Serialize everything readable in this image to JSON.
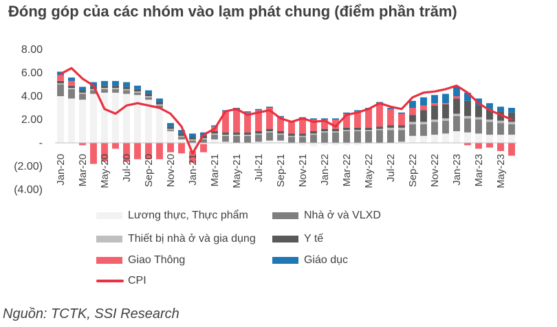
{
  "chart_data": {
    "type": "bar",
    "title": "Đóng góp của các nhóm vào lạm phát chung (điểm phần trăm)",
    "source": "Nguồn: TCTK, SSI Research",
    "ylim": [
      -4,
      8
    ],
    "yticks": [
      8,
      6,
      4,
      2,
      0,
      -2,
      -4
    ],
    "ytick_labels": [
      "8.00",
      "6.00",
      "4.00",
      "2.00",
      "-",
      "(2.00)",
      "(4.00)"
    ],
    "xtick_labels": [
      "Jan-20",
      "Mar-20",
      "May-20",
      "Jul-20",
      "Sep-20",
      "Nov-20",
      "Jan-21",
      "Mar-21",
      "May-21",
      "Jul-21",
      "Sep-21",
      "Nov-21",
      "Jan-22",
      "Mar-22",
      "May-22",
      "Jul-22",
      "Sep-22",
      "Nov-22",
      "Jan-23",
      "Mar-23",
      "May-23"
    ],
    "categories": [
      "Jan-20",
      "Feb-20",
      "Mar-20",
      "Apr-20",
      "May-20",
      "Jun-20",
      "Jul-20",
      "Aug-20",
      "Sep-20",
      "Oct-20",
      "Nov-20",
      "Dec-20",
      "Jan-21",
      "Feb-21",
      "Mar-21",
      "Apr-21",
      "May-21",
      "Jun-21",
      "Jul-21",
      "Aug-21",
      "Sep-21",
      "Oct-21",
      "Nov-21",
      "Dec-21",
      "Jan-22",
      "Feb-22",
      "Mar-22",
      "Apr-22",
      "May-22",
      "Jun-22",
      "Jul-22",
      "Aug-22",
      "Sep-22",
      "Oct-22",
      "Nov-22",
      "Dec-22",
      "Jan-23",
      "Feb-23",
      "Mar-23",
      "Apr-23",
      "May-23",
      "Jun-23"
    ],
    "series": [
      {
        "name": "Lương thực, Thực phẩm",
        "color": "#f2f2f2",
        "values": [
          4.0,
          3.8,
          3.7,
          4.2,
          4.3,
          4.3,
          4.2,
          4.1,
          3.7,
          3.0,
          1.0,
          0.3,
          -0.7,
          -0.1,
          0.3,
          0.1,
          0.0,
          0.0,
          0.1,
          0.2,
          0.2,
          -0.1,
          -0.2,
          -0.3,
          -0.2,
          -0.2,
          -0.2,
          -0.2,
          -0.1,
          -0.1,
          0.0,
          0.1,
          0.6,
          0.6,
          0.7,
          0.8,
          1.0,
          0.9,
          0.8,
          0.7,
          0.7,
          0.7
        ]
      },
      {
        "name": "Nhà ở và VLXD",
        "color": "#7f7f7f",
        "values": [
          1.0,
          0.8,
          0.5,
          0.3,
          0.3,
          0.3,
          0.3,
          0.2,
          0.2,
          0.2,
          0.1,
          0.2,
          0.2,
          0.3,
          0.4,
          0.5,
          0.6,
          0.6,
          0.6,
          0.7,
          0.5,
          0.5,
          0.5,
          0.7,
          0.9,
          0.9,
          1.0,
          1.0,
          1.0,
          1.1,
          1.1,
          1.0,
          1.0,
          1.0,
          1.1,
          1.1,
          1.3,
          1.2,
          1.2,
          1.1,
          1.0,
          0.9
        ]
      },
      {
        "name": "Thiết bị nhà ở và gia dụng",
        "color": "#bfbfbf",
        "values": [
          0.1,
          0.1,
          0.1,
          0.1,
          0.1,
          0.1,
          0.1,
          0.1,
          0.1,
          0.1,
          0.1,
          0.1,
          0.1,
          0.1,
          0.1,
          0.1,
          0.1,
          0.1,
          0.1,
          0.1,
          0.1,
          0.1,
          0.1,
          0.1,
          0.1,
          0.1,
          0.1,
          0.1,
          0.1,
          0.1,
          0.2,
          0.2,
          0.2,
          0.2,
          0.2,
          0.2,
          0.2,
          0.2,
          0.2,
          0.2,
          0.2,
          0.2
        ]
      },
      {
        "name": "Y tế",
        "color": "#595959",
        "values": [
          0.2,
          0.2,
          0.2,
          0.2,
          0.2,
          0.2,
          0.2,
          0.2,
          0.2,
          0.2,
          0.2,
          0.2,
          0.2,
          0.2,
          0.2,
          0.2,
          0.2,
          0.2,
          0.2,
          0.2,
          0.2,
          0.2,
          0.2,
          0.2,
          0.2,
          0.2,
          0.2,
          0.2,
          0.2,
          0.2,
          0.2,
          0.2,
          0.6,
          1.0,
          1.2,
          1.2,
          1.3,
          1.3,
          1.0,
          0.9,
          0.8,
          0.8
        ]
      },
      {
        "name": "Giao Thông",
        "color": "#f4606c",
        "values": [
          0.5,
          0.4,
          -0.2,
          -1.8,
          -1.6,
          -0.5,
          -1.6,
          -1.4,
          -1.4,
          -1.4,
          -0.8,
          -0.9,
          -1.0,
          -0.7,
          0.4,
          1.8,
          2.0,
          1.7,
          1.8,
          1.8,
          1.2,
          1.0,
          1.3,
          1.0,
          0.8,
          0.8,
          1.2,
          1.4,
          1.6,
          2.0,
          1.4,
          1.0,
          0.6,
          0.4,
          0.2,
          0.1,
          0.2,
          -0.2,
          -0.5,
          -0.4,
          -0.7,
          -1.1
        ]
      },
      {
        "name": "Giáo dục",
        "color": "#1f77b4",
        "values": [
          0.3,
          0.3,
          0.3,
          0.4,
          0.4,
          0.4,
          0.4,
          0.3,
          0.3,
          0.3,
          0.3,
          0.3,
          0.3,
          0.3,
          0.1,
          0.1,
          0.1,
          0.1,
          0.1,
          0.1,
          0.1,
          0.1,
          0.1,
          0.1,
          0.1,
          0.1,
          0.1,
          0.1,
          0.1,
          0.1,
          0.1,
          0.1,
          0.6,
          0.7,
          0.7,
          0.8,
          0.8,
          0.7,
          0.6,
          0.5,
          0.4,
          0.4
        ]
      }
    ],
    "line": {
      "name": "CPI",
      "color": "#e8303f",
      "values": [
        5.9,
        6.4,
        5.5,
        4.9,
        2.9,
        2.5,
        3.2,
        3.4,
        3.2,
        3.0,
        2.5,
        1.4,
        -0.9,
        0.7,
        1.2,
        2.7,
        2.9,
        2.4,
        2.6,
        2.8,
        2.1,
        1.8,
        2.1,
        1.8,
        1.9,
        1.4,
        2.4,
        2.6,
        2.9,
        3.4,
        3.1,
        2.9,
        3.9,
        4.3,
        4.4,
        4.6,
        4.9,
        4.3,
        3.4,
        2.8,
        2.4,
        2.0
      ]
    }
  },
  "legend": [
    {
      "label": "Lương thực, Thực phẩm",
      "color": "#f2f2f2",
      "kind": "bar"
    },
    {
      "label": "Nhà ở và VLXD",
      "color": "#7f7f7f",
      "kind": "bar"
    },
    {
      "label": "Thiết bị nhà ở và gia dụng",
      "color": "#bfbfbf",
      "kind": "bar"
    },
    {
      "label": "Y tế",
      "color": "#595959",
      "kind": "bar"
    },
    {
      "label": "Giao Thông",
      "color": "#f4606c",
      "kind": "bar"
    },
    {
      "label": "Giáo dục",
      "color": "#1f77b4",
      "kind": "bar"
    },
    {
      "label": "CPI",
      "color": "#e8303f",
      "kind": "line"
    }
  ]
}
